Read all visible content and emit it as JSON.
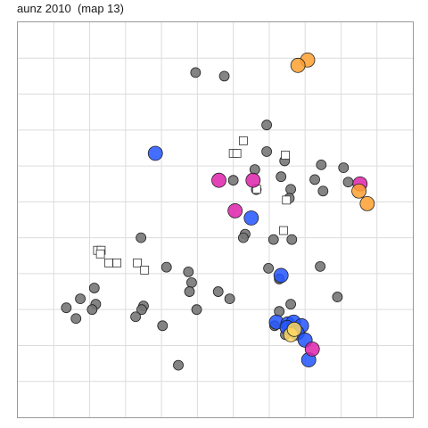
{
  "chart_data": {
    "type": "scatter",
    "title": "aunz 2010  (map 13)",
    "xlabel": "",
    "ylabel": "",
    "xlim": [
      0,
      11
    ],
    "ylim": [
      0,
      11
    ],
    "grid": true,
    "legend": "none",
    "axis_tick_labels_shown": false,
    "colors": {
      "gray": "#777777",
      "blue": "#2255ff",
      "magenta": "#dd22aa",
      "orange": "#ffa030",
      "yellow": "#ffd860",
      "square_fill": "#ffffff",
      "grid": "#dcdcdc",
      "panel_border": "#999999"
    },
    "series": [
      {
        "marker": "circle-small",
        "color": "gray",
        "points": [
          [
            4.95,
            9.6
          ],
          [
            5.75,
            9.5
          ],
          [
            6.93,
            8.14
          ],
          [
            6.93,
            7.4
          ],
          [
            7.43,
            7.14
          ],
          [
            8.45,
            7.03
          ],
          [
            6.6,
            6.9
          ],
          [
            6.0,
            6.6
          ],
          [
            7.33,
            6.7
          ],
          [
            8.27,
            6.62
          ],
          [
            8.5,
            6.3
          ],
          [
            6.64,
            6.34
          ],
          [
            7.6,
            6.35
          ],
          [
            7.56,
            6.1
          ],
          [
            3.43,
            5.0
          ],
          [
            6.33,
            5.1
          ],
          [
            6.28,
            5.0
          ],
          [
            7.12,
            4.95
          ],
          [
            7.63,
            4.95
          ],
          [
            8.42,
            4.2
          ],
          [
            4.14,
            4.18
          ],
          [
            4.75,
            4.05
          ],
          [
            6.98,
            4.15
          ],
          [
            4.84,
            3.75
          ],
          [
            7.28,
            3.85
          ],
          [
            5.58,
            3.5
          ],
          [
            5.9,
            3.3
          ],
          [
            2.13,
            3.6
          ],
          [
            1.74,
            3.3
          ],
          [
            4.78,
            3.5
          ],
          [
            1.35,
            3.05
          ],
          [
            2.17,
            3.15
          ],
          [
            2.07,
            3.0
          ],
          [
            3.5,
            3.1
          ],
          [
            3.45,
            3.0
          ],
          [
            4.98,
            3.0
          ],
          [
            3.28,
            2.8
          ],
          [
            1.62,
            2.75
          ],
          [
            8.9,
            3.35
          ],
          [
            7.6,
            3.15
          ],
          [
            4.03,
            2.55
          ],
          [
            4.47,
            1.45
          ],
          [
            7.28,
            2.95
          ],
          [
            7.15,
            2.55
          ],
          [
            7.45,
            2.3
          ],
          [
            9.07,
            6.95
          ],
          [
            9.2,
            6.55
          ]
        ]
      },
      {
        "marker": "square-open",
        "color": "square_fill",
        "points": [
          [
            6.28,
            7.7
          ],
          [
            6.0,
            7.35
          ],
          [
            6.1,
            7.35
          ],
          [
            7.45,
            7.3
          ],
          [
            6.65,
            6.35
          ],
          [
            7.48,
            6.05
          ],
          [
            7.4,
            5.2
          ],
          [
            2.22,
            4.65
          ],
          [
            2.32,
            4.65
          ],
          [
            2.3,
            4.55
          ],
          [
            2.53,
            4.3
          ],
          [
            2.76,
            4.3
          ],
          [
            3.33,
            4.3
          ],
          [
            3.53,
            4.1
          ]
        ]
      },
      {
        "marker": "circle-large",
        "color": "blue",
        "points": [
          [
            3.83,
            7.35
          ],
          [
            6.5,
            5.55
          ],
          [
            7.33,
            3.95
          ],
          [
            7.2,
            2.65
          ],
          [
            7.52,
            2.6
          ],
          [
            7.68,
            2.65
          ],
          [
            7.9,
            2.55
          ],
          [
            7.5,
            2.5
          ],
          [
            7.78,
            2.35
          ],
          [
            8.0,
            2.15
          ],
          [
            8.1,
            1.6
          ]
        ]
      },
      {
        "marker": "circle-large",
        "color": "magenta",
        "points": [
          [
            5.6,
            6.6
          ],
          [
            6.55,
            6.6
          ],
          [
            6.05,
            5.75
          ],
          [
            9.53,
            6.5
          ],
          [
            8.2,
            1.9
          ]
        ]
      },
      {
        "marker": "circle-large",
        "color": "orange",
        "points": [
          [
            8.07,
            9.95
          ],
          [
            7.8,
            9.8
          ],
          [
            9.5,
            6.3
          ],
          [
            9.73,
            5.95
          ]
        ]
      },
      {
        "marker": "circle-large",
        "color": "yellow",
        "points": [
          [
            7.6,
            2.3
          ],
          [
            7.7,
            2.45
          ]
        ]
      }
    ]
  }
}
